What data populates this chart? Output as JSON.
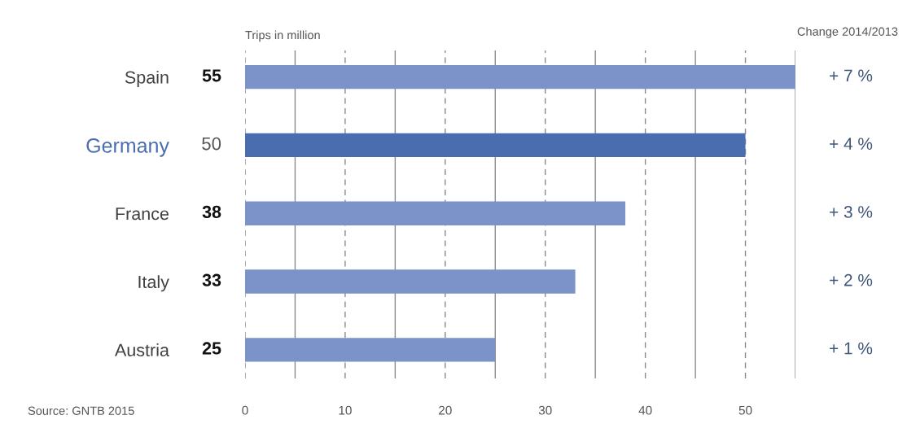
{
  "chart_data": {
    "type": "bar",
    "orientation": "horizontal",
    "xlabel": "Trips in million",
    "categories": [
      "Spain",
      "Germany",
      "France",
      "Italy",
      "Austria"
    ],
    "values": [
      55,
      50,
      38,
      33,
      25
    ],
    "colors": [
      "#7b93c9",
      "#4a6db0",
      "#7b93c9",
      "#7b93c9",
      "#7b93c9"
    ],
    "data_labels": true,
    "xlim": [
      0,
      55
    ],
    "xticks": [
      0,
      {
        "value": 5,
        "label": null
      },
      10,
      {
        "value": 15,
        "label": null
      },
      20,
      {
        "value": 25,
        "label": null
      },
      30,
      {
        "value": 35,
        "label": null
      },
      40,
      {
        "value": 45,
        "label": null
      },
      50,
      {
        "value": 55,
        "label": null
      }
    ],
    "grid": "x",
    "annotations": [
      "Change 2014/2013",
      "+ 7 %",
      "+ 4 %",
      "+ 3 %",
      "+ 2 %",
      "+ 1 %",
      "Source: GNTB 2015"
    ]
  }
}
